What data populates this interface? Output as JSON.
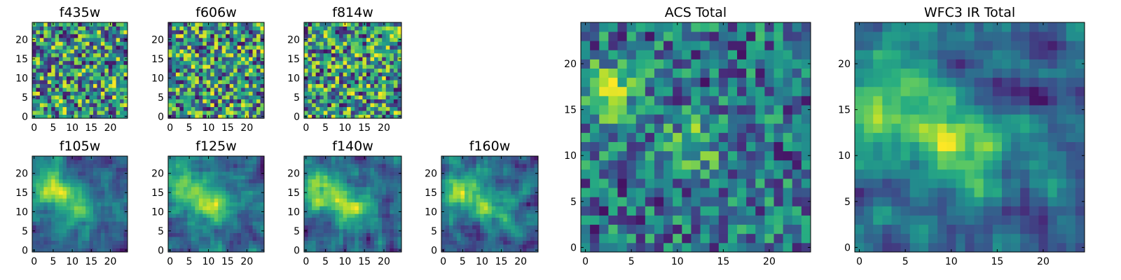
{
  "chart_data": [
    {
      "type": "heatmap",
      "title": "f435w",
      "xticks": [
        "0",
        "5",
        "10",
        "15",
        "20"
      ],
      "yticks": [
        "0",
        "5",
        "10",
        "15",
        "20"
      ],
      "xlim": [
        0,
        25
      ],
      "ylim": [
        0,
        25
      ],
      "colormap": "viridis",
      "grid": false
    },
    {
      "type": "heatmap",
      "title": "f606w",
      "xticks": [
        "0",
        "5",
        "10",
        "15",
        "20"
      ],
      "yticks": [
        "0",
        "5",
        "10",
        "15",
        "20"
      ],
      "xlim": [
        0,
        25
      ],
      "ylim": [
        0,
        25
      ],
      "colormap": "viridis",
      "grid": false
    },
    {
      "type": "heatmap",
      "title": "f814w",
      "xticks": [
        "0",
        "5",
        "10",
        "15",
        "20"
      ],
      "yticks": [
        "0",
        "5",
        "10",
        "15",
        "20"
      ],
      "xlim": [
        0,
        25
      ],
      "ylim": [
        0,
        25
      ],
      "colormap": "viridis",
      "grid": false
    },
    {
      "type": "heatmap",
      "title": "f105w",
      "xticks": [
        "0",
        "5",
        "10",
        "15",
        "20"
      ],
      "yticks": [
        "0",
        "5",
        "10",
        "15",
        "20"
      ],
      "xlim": [
        0,
        25
      ],
      "ylim": [
        0,
        25
      ],
      "colormap": "viridis",
      "grid": false
    },
    {
      "type": "heatmap",
      "title": "f125w",
      "xticks": [
        "0",
        "5",
        "10",
        "15",
        "20"
      ],
      "yticks": [
        "0",
        "5",
        "10",
        "15",
        "20"
      ],
      "xlim": [
        0,
        25
      ],
      "ylim": [
        0,
        25
      ],
      "colormap": "viridis",
      "grid": false
    },
    {
      "type": "heatmap",
      "title": "f140w",
      "xticks": [
        "0",
        "5",
        "10",
        "15",
        "20"
      ],
      "yticks": [
        "0",
        "5",
        "10",
        "15",
        "20"
      ],
      "xlim": [
        0,
        25
      ],
      "ylim": [
        0,
        25
      ],
      "colormap": "viridis",
      "grid": false
    },
    {
      "type": "heatmap",
      "title": "f160w",
      "xticks": [
        "0",
        "5",
        "10",
        "15",
        "20"
      ],
      "yticks": [
        "0",
        "5",
        "10",
        "15",
        "20"
      ],
      "xlim": [
        0,
        25
      ],
      "ylim": [
        0,
        25
      ],
      "colormap": "viridis",
      "grid": false
    },
    {
      "type": "heatmap",
      "title": "ACS Total",
      "xticks": [
        "0",
        "5",
        "10",
        "15",
        "20"
      ],
      "yticks": [
        "0",
        "5",
        "10",
        "15",
        "20"
      ],
      "xlim": [
        0,
        25
      ],
      "ylim": [
        0,
        25
      ],
      "colormap": "viridis",
      "grid": false
    },
    {
      "type": "heatmap",
      "title": "WFC3 IR Total",
      "xticks": [
        "0",
        "5",
        "10",
        "15",
        "20"
      ],
      "yticks": [
        "0",
        "5",
        "10",
        "15",
        "20"
      ],
      "xlim": [
        0,
        25
      ],
      "ylim": [
        0,
        25
      ],
      "colormap": "viridis",
      "grid": false
    }
  ],
  "colors": {
    "low": "#440154",
    "mid_low": "#31688e",
    "mid": "#21918c",
    "mid_high": "#5ec962",
    "high": "#fde725"
  }
}
